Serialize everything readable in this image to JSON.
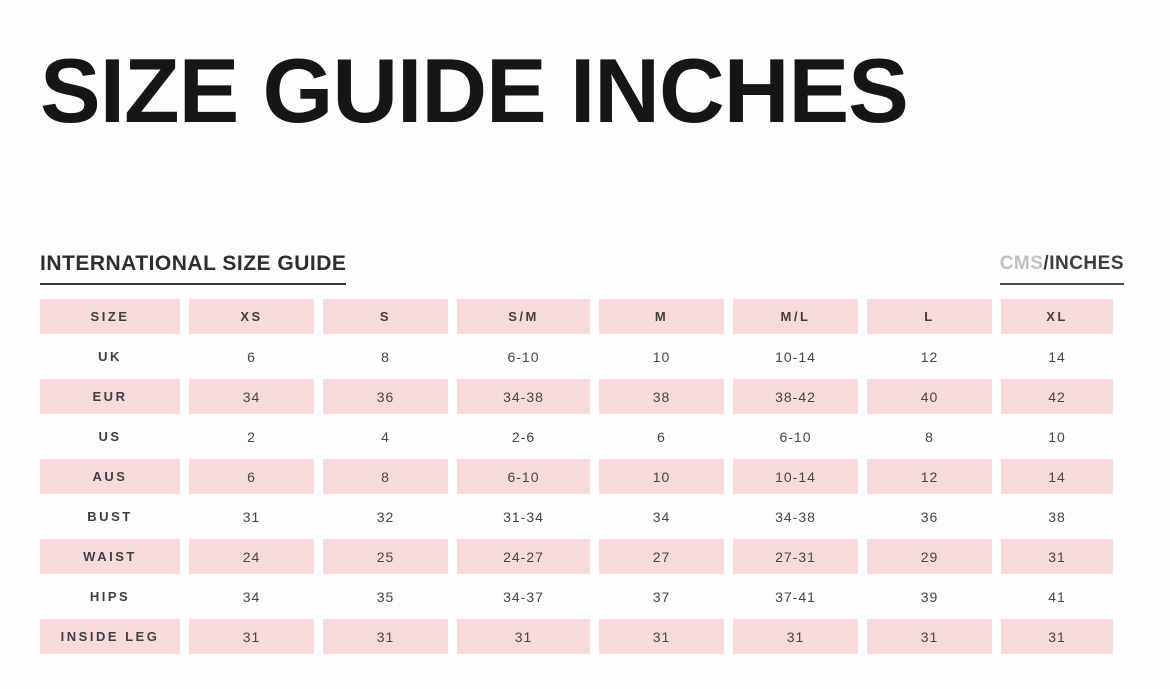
{
  "page": {
    "title": "SIZE GUIDE INCHES"
  },
  "section": {
    "heading": "INTERNATIONAL SIZE GUIDE",
    "unit_toggle": {
      "cms_label": "CMS",
      "separator": "/",
      "inches_label": "INCHES",
      "active_unit": "INCHES"
    }
  },
  "colors": {
    "row_pink": "#f9dada",
    "title_black": "#161616",
    "table_text": "#454545",
    "inactive_unit_gray": "#c2c1c1"
  },
  "chart_data": {
    "type": "table",
    "title": "SIZE GUIDE INCHES",
    "columns": [
      "SIZE",
      "XS",
      "S",
      "S/M",
      "M",
      "M/L",
      "L",
      "XL"
    ],
    "rows": [
      {
        "label": "UK",
        "values": [
          "6",
          "8",
          "6-10",
          "10",
          "10-14",
          "12",
          "14"
        ]
      },
      {
        "label": "EUR",
        "values": [
          "34",
          "36",
          "34-38",
          "38",
          "38-42",
          "40",
          "42"
        ]
      },
      {
        "label": "US",
        "values": [
          "2",
          "4",
          "2-6",
          "6",
          "6-10",
          "8",
          "10"
        ]
      },
      {
        "label": "AUS",
        "values": [
          "6",
          "8",
          "6-10",
          "10",
          "10-14",
          "12",
          "14"
        ]
      },
      {
        "label": "BUST",
        "values": [
          "31",
          "32",
          "31-34",
          "34",
          "34-38",
          "36",
          "38"
        ]
      },
      {
        "label": "WAIST",
        "values": [
          "24",
          "25",
          "24-27",
          "27",
          "27-31",
          "29",
          "31"
        ]
      },
      {
        "label": "HIPS",
        "values": [
          "34",
          "35",
          "34-37",
          "37",
          "37-41",
          "39",
          "41"
        ]
      },
      {
        "label": "INSIDE LEG",
        "values": [
          "31",
          "31",
          "31",
          "31",
          "31",
          "31",
          "31"
        ]
      }
    ]
  }
}
